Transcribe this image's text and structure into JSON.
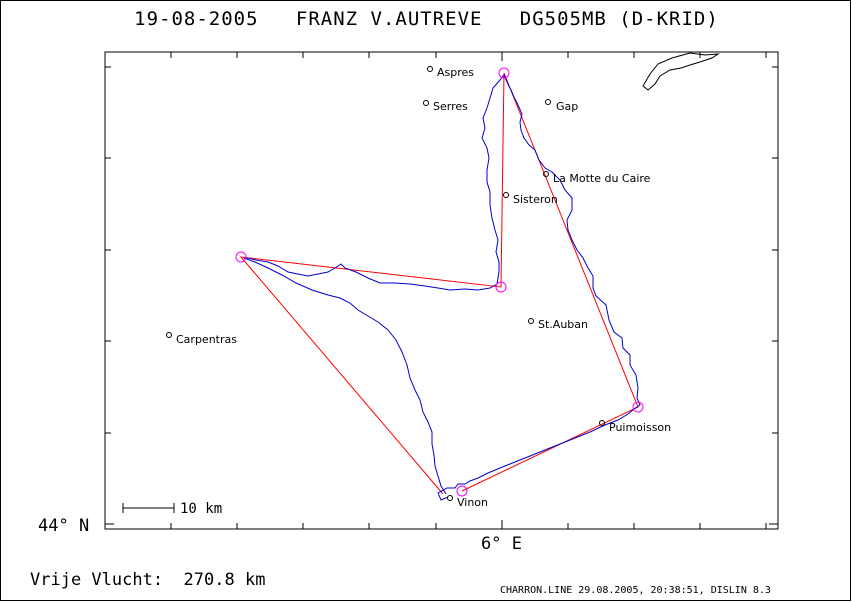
{
  "title": "19-08-2005   FRANZ V.AUTREVE   DG505MB (D-KRID)",
  "axis": {
    "y_label": "44° N",
    "x_label": "6° E"
  },
  "scale_bar": {
    "label": "10 km"
  },
  "distance": {
    "label": "Vrije Vlucht:",
    "value": "270.8 km"
  },
  "footer": "CHARRON.LINE 29.08.2005, 20:38:51, DISLIN 8.3",
  "places": [
    {
      "name": "Aspres"
    },
    {
      "name": "Serres"
    },
    {
      "name": "Gap"
    },
    {
      "name": "La Motte du Caire"
    },
    {
      "name": "Sisteron"
    },
    {
      "name": "St.Auban"
    },
    {
      "name": "Carpentras"
    },
    {
      "name": "Puimoisson"
    },
    {
      "name": "Vinon"
    }
  ],
  "colors": {
    "track": "#0000cc",
    "task": "#ff0000",
    "turnpoint": "#ff00ff",
    "frame": "#000000"
  },
  "turnpoint_count": 5
}
